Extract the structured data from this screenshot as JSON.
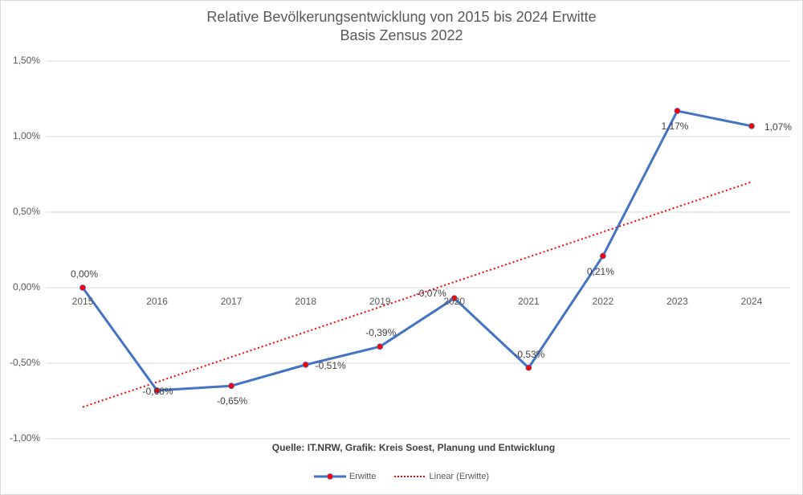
{
  "chart_data": {
    "type": "line",
    "title": "Relative Bevölkerungsentwicklung von 2015 bis 2024 Erwitte",
    "subtitle": "Basis Zensus 2022",
    "xlabel": "",
    "ylabel": "",
    "categories": [
      "2015",
      "2016",
      "2017",
      "2018",
      "2019",
      "2020",
      "2021",
      "2022",
      "2023",
      "2024"
    ],
    "series": [
      {
        "name": "Erwitte",
        "values": [
          0.0,
          -0.68,
          -0.65,
          -0.51,
          -0.39,
          -0.07,
          -0.53,
          0.21,
          1.17,
          1.07
        ],
        "labels": [
          "0,00%",
          "-0,68%",
          "-0,65%",
          "-0,51%",
          "-0,39%",
          "-0,07%",
          "-0,53%",
          "0,21%",
          "1,17%",
          "1,07%"
        ],
        "color": "#4472c4",
        "marker_color": "#ff0000"
      },
      {
        "name": "Linear (Erwitte)",
        "type": "trendline",
        "start": -0.79,
        "end": 0.7,
        "color": "#ff0000",
        "style": "dotted"
      }
    ],
    "ylim": [
      -1.0,
      1.5
    ],
    "yticks": [
      "1,50%",
      "1,00%",
      "0,50%",
      "0,00%",
      "-0,50%",
      "-1,00%"
    ],
    "ytick_values": [
      1.5,
      1.0,
      0.5,
      0.0,
      -0.5,
      -1.0
    ],
    "grid": true,
    "legend_position": "bottom",
    "annotation": "Quelle: IT.NRW, Grafik: Kreis Soest, Planung und Entwicklung"
  },
  "legend": {
    "series_label": "Erwitte",
    "trend_label": "Linear (Erwitte)"
  }
}
